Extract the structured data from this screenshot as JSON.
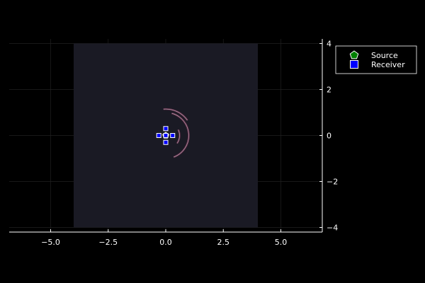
{
  "chart_data": {
    "type": "scatter",
    "title": "",
    "xlabel": "",
    "ylabel": "",
    "xlim": [
      -6.8,
      6.8
    ],
    "ylim": [
      -4.2,
      4.2
    ],
    "x_ticks": [
      -5.0,
      -2.5,
      0.0,
      2.5,
      5.0
    ],
    "x_tick_labels": [
      "−5.0",
      "−2.5",
      "0.0",
      "2.5",
      "5.0"
    ],
    "y_ticks": [
      -4,
      -2,
      0,
      2,
      4
    ],
    "y_tick_labels": [
      "−4",
      "−2",
      "0",
      "2",
      "4"
    ],
    "grid": true,
    "legend_position": "top-right",
    "domain": {
      "x": [
        -4,
        4
      ],
      "y": [
        -4,
        4
      ]
    },
    "wavefront_arcs": [
      {
        "radius": 1.0,
        "start_deg": -70,
        "end_deg": 75
      },
      {
        "radius": 1.15,
        "start_deg": 35,
        "end_deg": 95
      },
      {
        "radius": 0.6,
        "start_deg": -35,
        "end_deg": 25
      }
    ],
    "series": [
      {
        "name": "Source",
        "marker": "pentagon",
        "points": [
          [
            0,
            0
          ]
        ]
      },
      {
        "name": "Receiver",
        "marker": "square",
        "points": [
          [
            0,
            0.3
          ],
          [
            -0.3,
            0
          ],
          [
            0.3,
            0
          ],
          [
            0,
            -0.3
          ],
          [
            0,
            0
          ]
        ]
      }
    ]
  },
  "colors": {
    "background": "#000000",
    "domain_fill": "#1a1a24",
    "axis": "#ffffff",
    "grid": "#202020",
    "source_fill": "#008000",
    "receiver_fill": "#0000ff",
    "marker_stroke": "#ffffff",
    "wave_dark": "#5a2a45",
    "wave_light": "#ffffff"
  }
}
